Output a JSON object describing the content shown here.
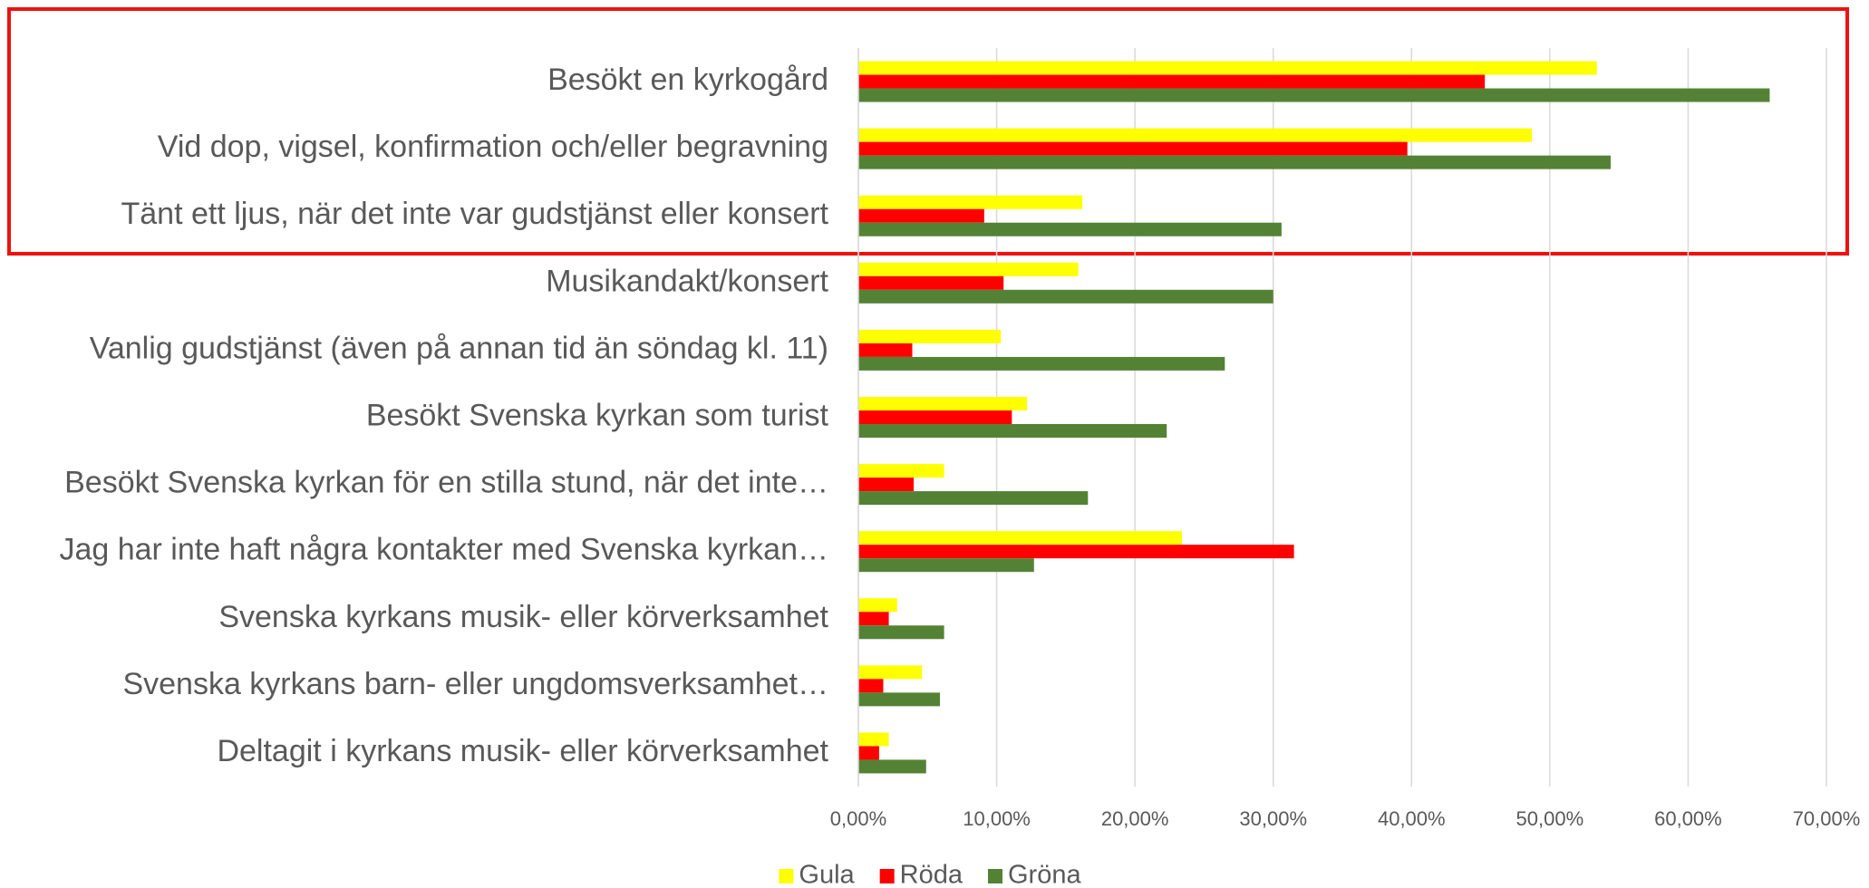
{
  "chart_data": {
    "type": "bar",
    "orientation": "horizontal",
    "categories": [
      "Besökt en kyrkogård",
      "Vid dop, vigsel, konfirmation och/eller begravning",
      "Tänt ett ljus, när det inte var gudstjänst eller konsert",
      "Musikandakt/konsert",
      "Vanlig gudstjänst (även på annan tid än söndag kl. 11)",
      "Besökt Svenska kyrkan som turist",
      "Besökt Svenska kyrkan för en stilla stund, när det inte…",
      "Jag har inte haft några kontakter med Svenska kyrkan…",
      "Svenska kyrkans musik- eller körverksamhet",
      "Svenska kyrkans barn- eller ungdomsverksamhet…",
      "Deltagit i kyrkans musik- eller körverksamhet"
    ],
    "series": [
      {
        "name": "Gula",
        "color": "#ffff00",
        "values": [
          53.4,
          48.7,
          16.2,
          15.9,
          10.3,
          12.2,
          6.2,
          23.4,
          2.8,
          4.6,
          2.2
        ]
      },
      {
        "name": "Röda",
        "color": "#ff0000",
        "values": [
          45.3,
          39.7,
          9.1,
          10.5,
          3.9,
          11.1,
          4.0,
          31.5,
          2.2,
          1.8,
          1.5
        ]
      },
      {
        "name": "Gröna",
        "color": "#548235",
        "values": [
          65.9,
          54.4,
          30.6,
          30.0,
          26.5,
          22.3,
          16.6,
          12.7,
          6.2,
          5.9,
          4.9
        ]
      }
    ],
    "xlim": [
      0,
      70
    ],
    "xticks": [
      {
        "value": 0,
        "label": "0,00%"
      },
      {
        "value": 10,
        "label": "10,00%"
      },
      {
        "value": 20,
        "label": "20,00%"
      },
      {
        "value": 30,
        "label": "30,00%"
      },
      {
        "value": 40,
        "label": "40,00%"
      },
      {
        "value": 50,
        "label": "50,00%"
      },
      {
        "value": 60,
        "label": "60,00%"
      },
      {
        "value": 70,
        "label": "70,00%"
      }
    ],
    "grid": true,
    "legend": "bottom"
  }
}
